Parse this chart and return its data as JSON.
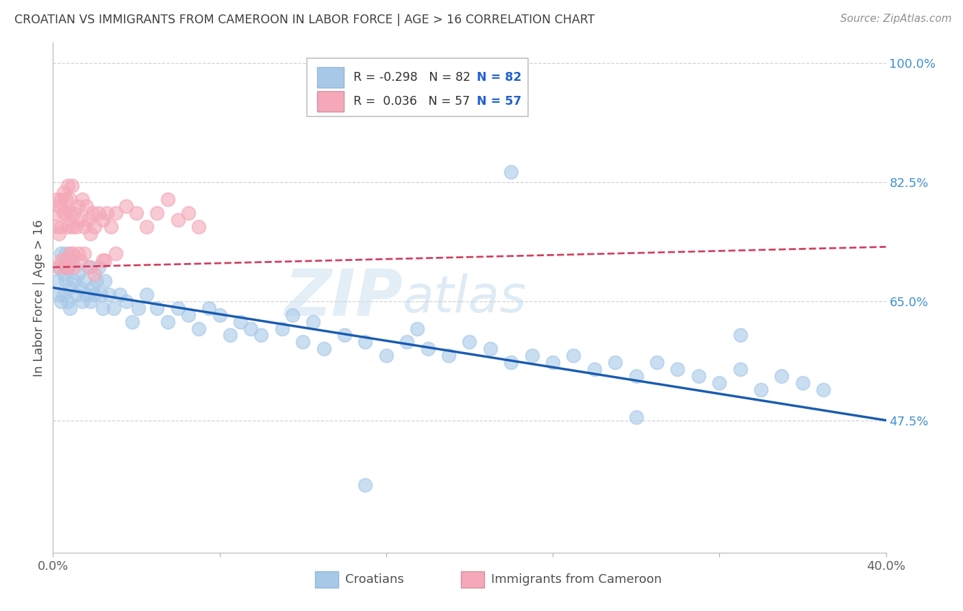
{
  "title": "CROATIAN VS IMMIGRANTS FROM CAMEROON IN LABOR FORCE | AGE > 16 CORRELATION CHART",
  "source_text": "Source: ZipAtlas.com",
  "ylabel": "In Labor Force | Age > 16",
  "xlim": [
    0.0,
    0.4
  ],
  "ylim": [
    0.28,
    1.03
  ],
  "xtick_positions": [
    0.0,
    0.08,
    0.16,
    0.24,
    0.32,
    0.4
  ],
  "xticklabels": [
    "0.0%",
    "",
    "",
    "",
    "",
    "40.0%"
  ],
  "yticks_right": [
    0.475,
    0.65,
    0.825,
    1.0
  ],
  "yticklabels_right": [
    "47.5%",
    "65.0%",
    "82.5%",
    "100.0%"
  ],
  "r_croatian": -0.298,
  "n_croatian": 82,
  "r_cameroon": 0.036,
  "n_cameroon": 57,
  "color_croatian": "#a8c8e8",
  "color_cameroon": "#f4a8b8",
  "line_color_croatian": "#1a5cb0",
  "line_color_cameroon": "#d04060",
  "watermark": "ZIPatlas",
  "background_color": "#ffffff",
  "grid_color": "#d0d0d8",
  "title_color": "#404040",
  "right_tick_color": "#4090d0",
  "legend_r1_color": "#d04060",
  "legend_r2_color": "#d04060",
  "legend_n_color": "#2060d0",
  "croatian_x": [
    0.002,
    0.003,
    0.003,
    0.004,
    0.004,
    0.005,
    0.005,
    0.006,
    0.006,
    0.007,
    0.007,
    0.008,
    0.008,
    0.009,
    0.01,
    0.011,
    0.012,
    0.013,
    0.014,
    0.015,
    0.016,
    0.017,
    0.018,
    0.019,
    0.02,
    0.021,
    0.022,
    0.023,
    0.024,
    0.025,
    0.027,
    0.029,
    0.032,
    0.035,
    0.038,
    0.041,
    0.045,
    0.05,
    0.055,
    0.06,
    0.065,
    0.07,
    0.075,
    0.08,
    0.085,
    0.09,
    0.095,
    0.1,
    0.11,
    0.115,
    0.12,
    0.125,
    0.13,
    0.14,
    0.15,
    0.16,
    0.17,
    0.175,
    0.18,
    0.19,
    0.2,
    0.21,
    0.22,
    0.23,
    0.24,
    0.25,
    0.26,
    0.27,
    0.28,
    0.29,
    0.3,
    0.31,
    0.32,
    0.33,
    0.34,
    0.35,
    0.36,
    0.37,
    0.22,
    0.33,
    0.28,
    0.15
  ],
  "croatian_y": [
    0.68,
    0.7,
    0.66,
    0.72,
    0.65,
    0.69,
    0.66,
    0.68,
    0.72,
    0.65,
    0.7,
    0.67,
    0.64,
    0.71,
    0.68,
    0.66,
    0.69,
    0.67,
    0.65,
    0.68,
    0.66,
    0.7,
    0.65,
    0.67,
    0.66,
    0.68,
    0.7,
    0.66,
    0.64,
    0.68,
    0.66,
    0.64,
    0.66,
    0.65,
    0.62,
    0.64,
    0.66,
    0.64,
    0.62,
    0.64,
    0.63,
    0.61,
    0.64,
    0.63,
    0.6,
    0.62,
    0.61,
    0.6,
    0.61,
    0.63,
    0.59,
    0.62,
    0.58,
    0.6,
    0.59,
    0.57,
    0.59,
    0.61,
    0.58,
    0.57,
    0.59,
    0.58,
    0.56,
    0.57,
    0.56,
    0.57,
    0.55,
    0.56,
    0.54,
    0.56,
    0.55,
    0.54,
    0.53,
    0.55,
    0.52,
    0.54,
    0.53,
    0.52,
    0.84,
    0.6,
    0.48,
    0.38
  ],
  "cameroon_x": [
    0.001,
    0.002,
    0.002,
    0.003,
    0.003,
    0.004,
    0.004,
    0.005,
    0.005,
    0.006,
    0.006,
    0.007,
    0.007,
    0.008,
    0.008,
    0.009,
    0.009,
    0.01,
    0.011,
    0.012,
    0.013,
    0.014,
    0.015,
    0.016,
    0.017,
    0.018,
    0.019,
    0.02,
    0.022,
    0.024,
    0.026,
    0.028,
    0.03,
    0.035,
    0.04,
    0.045,
    0.05,
    0.055,
    0.06,
    0.065,
    0.07,
    0.02,
    0.025,
    0.015,
    0.01,
    0.008,
    0.006,
    0.005,
    0.012,
    0.018,
    0.024,
    0.03,
    0.003,
    0.004,
    0.007,
    0.009,
    0.013
  ],
  "cameroon_y": [
    0.78,
    0.8,
    0.76,
    0.79,
    0.75,
    0.8,
    0.76,
    0.78,
    0.81,
    0.78,
    0.8,
    0.76,
    0.82,
    0.78,
    0.8,
    0.76,
    0.82,
    0.78,
    0.76,
    0.79,
    0.77,
    0.8,
    0.76,
    0.79,
    0.77,
    0.75,
    0.78,
    0.76,
    0.78,
    0.77,
    0.78,
    0.76,
    0.78,
    0.79,
    0.78,
    0.76,
    0.78,
    0.8,
    0.77,
    0.78,
    0.76,
    0.69,
    0.71,
    0.72,
    0.7,
    0.72,
    0.7,
    0.71,
    0.72,
    0.7,
    0.71,
    0.72,
    0.7,
    0.71,
    0.7,
    0.72,
    0.71
  ]
}
